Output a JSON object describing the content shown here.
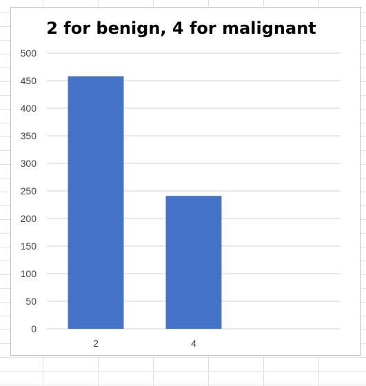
{
  "chart_data": {
    "type": "bar",
    "title": "2 for benign, 4 for malignant",
    "xlabel": "",
    "ylabel": "",
    "categories": [
      "2",
      "4"
    ],
    "values": [
      458,
      241
    ],
    "ylim": [
      0,
      500
    ],
    "yticks": [
      "0",
      "50",
      "100",
      "150",
      "200",
      "250",
      "300",
      "350",
      "400",
      "450",
      "500"
    ],
    "grid": true,
    "legend": "none",
    "bar_color": "#4472C4"
  }
}
